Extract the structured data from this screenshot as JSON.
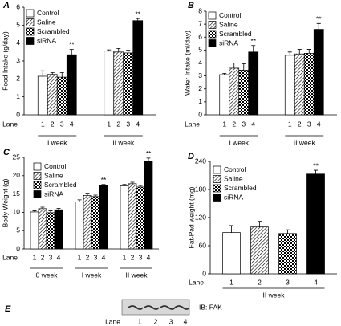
{
  "chart_data": [
    {
      "type": "bar",
      "panel": "A",
      "y_label": "Food Intake (g/day)",
      "ylim": [
        0,
        6
      ],
      "yticks": [
        0,
        1,
        2,
        3,
        4,
        5,
        6
      ],
      "lane_label": "Lane",
      "lanes": [
        "1",
        "2",
        "3",
        "4"
      ],
      "categories": [
        "I week",
        "II week"
      ],
      "series": [
        {
          "name": "Control",
          "color": "#ffffff",
          "pattern": "solid",
          "values": [
            2.15,
            3.55
          ],
          "errors": [
            0.3,
            0.07
          ]
        },
        {
          "name": "Saline",
          "color": "#ffffff",
          "pattern": "diagonal",
          "values": [
            2.25,
            3.5
          ],
          "errors": [
            0.1,
            0.2
          ]
        },
        {
          "name": "Scrambled",
          "color": "#ffffff",
          "pattern": "checker",
          "values": [
            2.1,
            3.45
          ],
          "errors": [
            0.25,
            0.15
          ]
        },
        {
          "name": "siRNA",
          "color": "#000000",
          "pattern": "solid",
          "values": [
            3.35,
            5.25
          ],
          "errors": [
            0.3,
            0.12
          ],
          "annotations": [
            "**",
            "**"
          ]
        }
      ]
    },
    {
      "type": "bar",
      "panel": "B",
      "y_label": "Water Intake (ml/day)",
      "ylim": [
        0,
        8
      ],
      "yticks": [
        0,
        1,
        2,
        3,
        4,
        5,
        6,
        7,
        8
      ],
      "lane_label": "Lane",
      "lanes": [
        "1",
        "2",
        "3",
        "4"
      ],
      "categories": [
        "I week",
        "II week"
      ],
      "series": [
        {
          "name": "Control",
          "color": "#ffffff",
          "pattern": "solid",
          "values": [
            3.1,
            4.6
          ],
          "errors": [
            0.1,
            0.25
          ]
        },
        {
          "name": "Saline",
          "color": "#ffffff",
          "pattern": "diagonal",
          "values": [
            3.6,
            4.7
          ],
          "errors": [
            0.4,
            0.35
          ]
        },
        {
          "name": "Scrambled",
          "color": "#ffffff",
          "pattern": "checker",
          "values": [
            3.45,
            4.75
          ],
          "errors": [
            0.5,
            0.3
          ]
        },
        {
          "name": "siRNA",
          "color": "#000000",
          "pattern": "solid",
          "values": [
            4.85,
            6.6
          ],
          "errors": [
            0.5,
            0.45
          ],
          "annotations": [
            "**",
            "**"
          ]
        }
      ]
    },
    {
      "type": "bar",
      "panel": "C",
      "y_label": "Body Weight (g)",
      "ylim": [
        0,
        25
      ],
      "yticks": [
        0,
        5,
        10,
        15,
        20,
        25
      ],
      "lane_label": "Lane",
      "lanes": [
        "1",
        "2",
        "3",
        "4"
      ],
      "categories": [
        "0 week",
        "I week",
        "II week"
      ],
      "series": [
        {
          "name": "Control",
          "color": "#ffffff",
          "pattern": "solid",
          "values": [
            10.1,
            12.8,
            17.2
          ],
          "errors": [
            0.3,
            0.6,
            0.4
          ]
        },
        {
          "name": "Saline",
          "color": "#ffffff",
          "pattern": "diagonal",
          "values": [
            11.0,
            14.6,
            17.8
          ],
          "errors": [
            0.4,
            0.6,
            0.4
          ]
        },
        {
          "name": "Scrambled",
          "color": "#ffffff",
          "pattern": "checker",
          "values": [
            9.9,
            14.3,
            16.9
          ],
          "errors": [
            0.5,
            0.4,
            0.4
          ]
        },
        {
          "name": "siRNA",
          "color": "#000000",
          "pattern": "solid",
          "values": [
            10.7,
            17.3,
            24.0
          ],
          "errors": [
            0.4,
            0.3,
            0.8
          ],
          "annotations": [
            null,
            "**",
            "**"
          ]
        }
      ]
    },
    {
      "type": "bar",
      "panel": "D",
      "y_label": "Fat-Pad weight (mg)",
      "ylim": [
        0,
        240
      ],
      "yticks": [
        0,
        60,
        120,
        180,
        240
      ],
      "lane_label": "Lane",
      "lanes": [
        "1",
        "2",
        "3",
        "4"
      ],
      "categories": [
        "II week"
      ],
      "series": [
        {
          "name": "Control",
          "color": "#ffffff",
          "pattern": "solid",
          "values": [
            88
          ],
          "errors": [
            15
          ]
        },
        {
          "name": "Saline",
          "color": "#ffffff",
          "pattern": "diagonal",
          "values": [
            100
          ],
          "errors": [
            12
          ]
        },
        {
          "name": "Scrambled",
          "color": "#ffffff",
          "pattern": "checker",
          "values": [
            86
          ],
          "errors": [
            8
          ]
        },
        {
          "name": "siRNA",
          "color": "#000000",
          "pattern": "solid",
          "values": [
            213
          ],
          "errors": [
            8
          ],
          "annotations": [
            "**"
          ]
        }
      ]
    }
  ],
  "blot": {
    "panel": "E",
    "label": "IB: FAK",
    "lane_label": "Lane",
    "lanes": [
      "1",
      "2",
      "3",
      "4"
    ]
  }
}
